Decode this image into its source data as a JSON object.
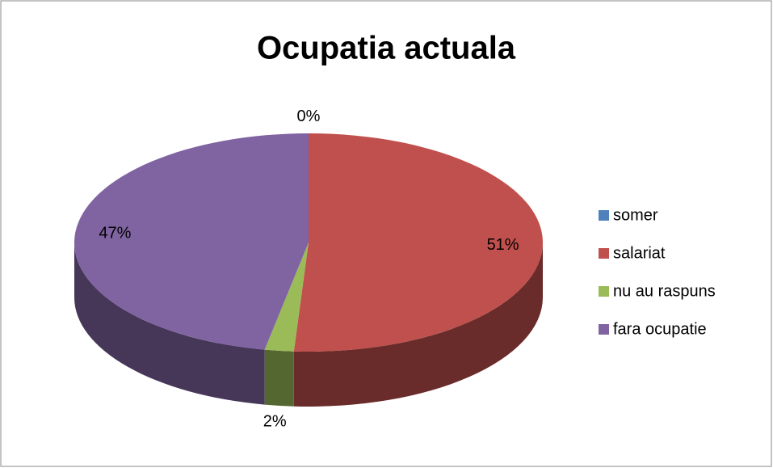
{
  "chart_data": {
    "type": "pie3d",
    "title": "Ocupatia actuala",
    "categories": [
      "somer",
      "salariat",
      "nu au raspuns",
      "fara ocupatie"
    ],
    "values": [
      0,
      51,
      2,
      47
    ],
    "value_labels": [
      "0%",
      "51%",
      "2%",
      "47%"
    ],
    "colors": [
      "#4f81bd",
      "#c0504d",
      "#9bbb59",
      "#8064a2"
    ],
    "legend": "right"
  }
}
